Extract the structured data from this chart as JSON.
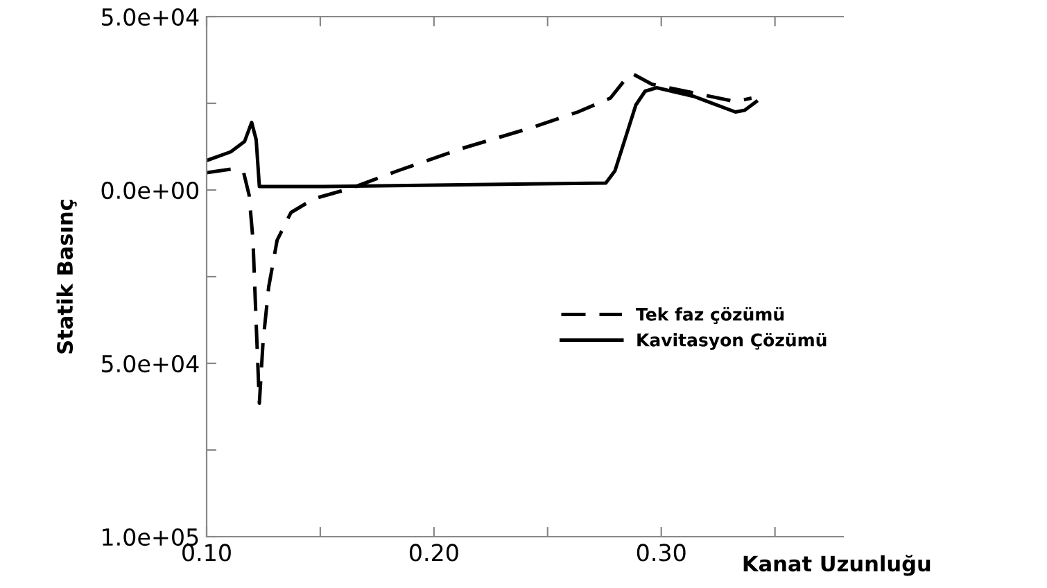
{
  "chart_data": {
    "type": "line",
    "xlabel": "Kanat Uzunluğu",
    "ylabel": "Statik Basınç",
    "xlim": [
      0.1,
      0.38
    ],
    "xticks": [
      {
        "value": 0.1,
        "label": "0.10"
      },
      {
        "value": 0.15,
        "label": null
      },
      {
        "value": 0.2,
        "label": "0.20"
      },
      {
        "value": 0.25,
        "label": null
      },
      {
        "value": 0.3,
        "label": "0.30"
      },
      {
        "value": 0.35,
        "label": null
      }
    ],
    "ylim": [
      -100000,
      50000
    ],
    "yticks": [
      {
        "value": 50000,
        "label": "5.0e+04"
      },
      {
        "value": 25000,
        "label": null
      },
      {
        "value": 0,
        "label": "0.0e+00"
      },
      {
        "value": -25000,
        "label": null
      },
      {
        "value": -50000,
        "label": "5.0e+04"
      },
      {
        "value": -75000,
        "label": null
      },
      {
        "value": -100000,
        "label": "1.0e+05"
      }
    ],
    "grid": false,
    "legend": "right",
    "marker": "none",
    "series": [
      {
        "name": "Tek faz çözümü",
        "color": "#000000",
        "line_style": "dashed",
        "x": [
          0.1,
          0.1106,
          0.1163,
          0.1187,
          0.1204,
          0.1218,
          0.1232,
          0.1248,
          0.1273,
          0.131,
          0.1371,
          0.1473,
          0.1635,
          0.1839,
          0.2124,
          0.243,
          0.2633,
          0.2776,
          0.2837,
          0.2874,
          0.2959,
          0.3143,
          0.3326,
          0.3397
        ],
        "values": [
          5000,
          6000,
          5000,
          -1500,
          -14500,
          -38500,
          -61500,
          -44000,
          -28000,
          -14500,
          -6500,
          -2500,
          500,
          5500,
          12000,
          18000,
          22500,
          26500,
          31500,
          33500,
          30500,
          28000,
          25500,
          26500
        ]
      },
      {
        "name": "Kavitasyon Çözümü",
        "color": "#000000",
        "line_style": "solid",
        "x": [
          0.1,
          0.1106,
          0.1167,
          0.1198,
          0.1218,
          0.1232,
          0.1513,
          0.2756,
          0.2796,
          0.2847,
          0.2888,
          0.2929,
          0.298,
          0.3143,
          0.3326,
          0.3367,
          0.3418
        ],
        "values": [
          8500,
          11000,
          14000,
          19500,
          14500,
          1000,
          1000,
          2000,
          5500,
          16000,
          24500,
          28500,
          29500,
          27000,
          22500,
          23000,
          25500
        ]
      }
    ]
  }
}
